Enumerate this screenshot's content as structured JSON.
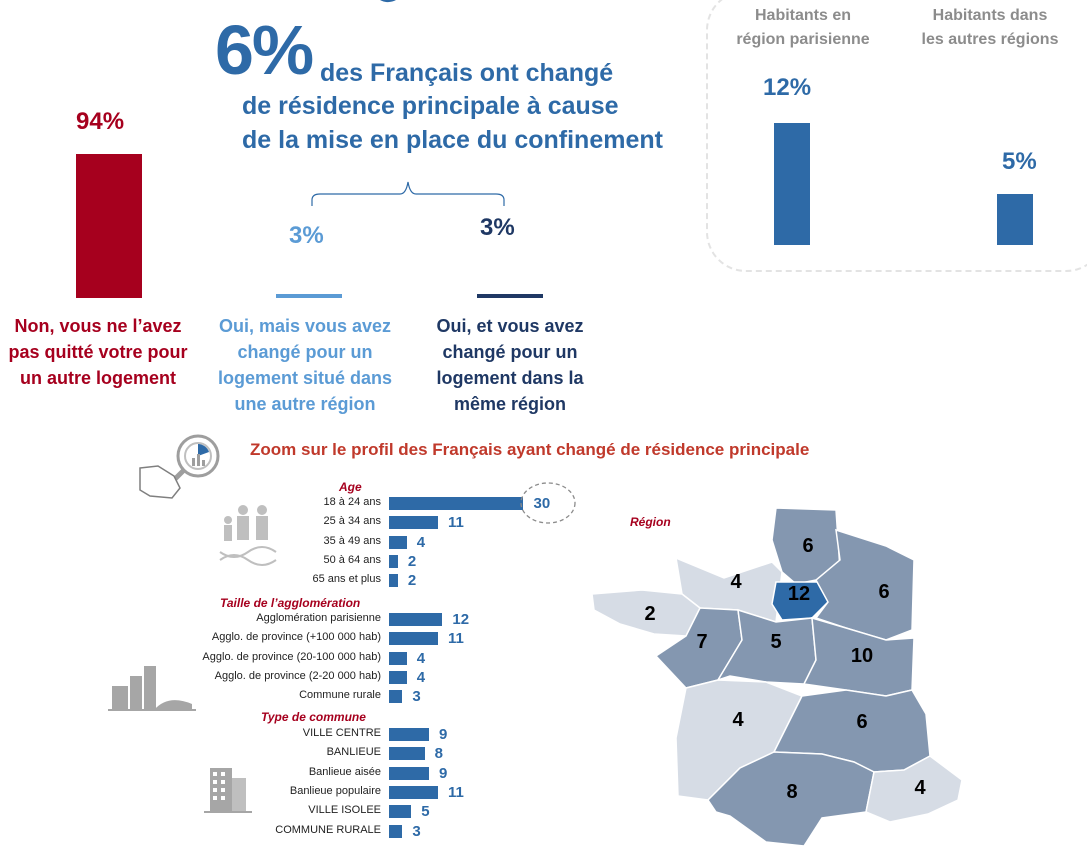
{
  "headline": {
    "big_pct": "6%",
    "line1": "des Français ont changé",
    "line2": "de résidence principale à cause",
    "line3": "de la mise en place du confinement"
  },
  "left_stat": {
    "pct": "94%",
    "label_lines": [
      "Non, vous ne l’avez",
      "pas quitté votre pour",
      "un autre logement"
    ],
    "color": "#a6001e",
    "value": 94
  },
  "split": [
    {
      "pct": "3%",
      "label_lines": [
        "Oui, mais vous avez",
        "changé pour un",
        "logement situé dans",
        "une autre région"
      ],
      "color": "#5b9bd5"
    },
    {
      "pct": "3%",
      "label_lines": [
        "Oui, et vous avez",
        "changé pour un",
        "logement dans la",
        "même région"
      ],
      "color": "#1f3864"
    }
  ],
  "region_compare": {
    "headers": [
      [
        "Habitants en",
        "région parisienne"
      ],
      [
        "Habitants dans",
        "les autres régions"
      ]
    ],
    "labels": [
      "12%",
      "5%"
    ],
    "values": [
      12,
      5
    ],
    "color": "#2e6aa7"
  },
  "zoom_title": "Zoom sur le profil des Français ayant changé de résidence principale",
  "chart_data": [
    {
      "type": "bar",
      "title": "Age",
      "categories": [
        "18 à 24 ans",
        "25 à 34 ans",
        "35 à 49 ans",
        "50 à 64 ans",
        "65 ans et plus"
      ],
      "values": [
        30,
        11,
        4,
        2,
        2
      ]
    },
    {
      "type": "bar",
      "title": "Taille de l’agglomération",
      "categories": [
        "Agglomération parisienne",
        "Agglo. de province (+100 000 hab)",
        "Agglo. de province (20-100 000 hab)",
        "Agglo. de province (2-20 000 hab)",
        "Commune rurale"
      ],
      "values": [
        12,
        11,
        4,
        4,
        3
      ]
    },
    {
      "type": "bar",
      "title": "Type de commune",
      "categories": [
        "VILLE CENTRE",
        "BANLIEUE",
        "Banlieue aisée",
        "Banlieue populaire",
        "VILLE ISOLEE",
        "COMMUNE RURALE"
      ],
      "values": [
        9,
        8,
        9,
        11,
        5,
        3
      ]
    }
  ],
  "map": {
    "title": "Région",
    "values": [
      "6",
      "4",
      "12",
      "6",
      "2",
      "7",
      "5",
      "10",
      "4",
      "6",
      "8",
      "4"
    ],
    "colors": {
      "highlight": "#2e6aa7",
      "mid": "#8497b0",
      "light": "#d6dce5",
      "border": "#ffffff"
    }
  },
  "icons": [
    "pie-chart-icon",
    "hand-magnifier-icon",
    "family-dna-icon",
    "city-skyline-icon",
    "building-icon"
  ]
}
